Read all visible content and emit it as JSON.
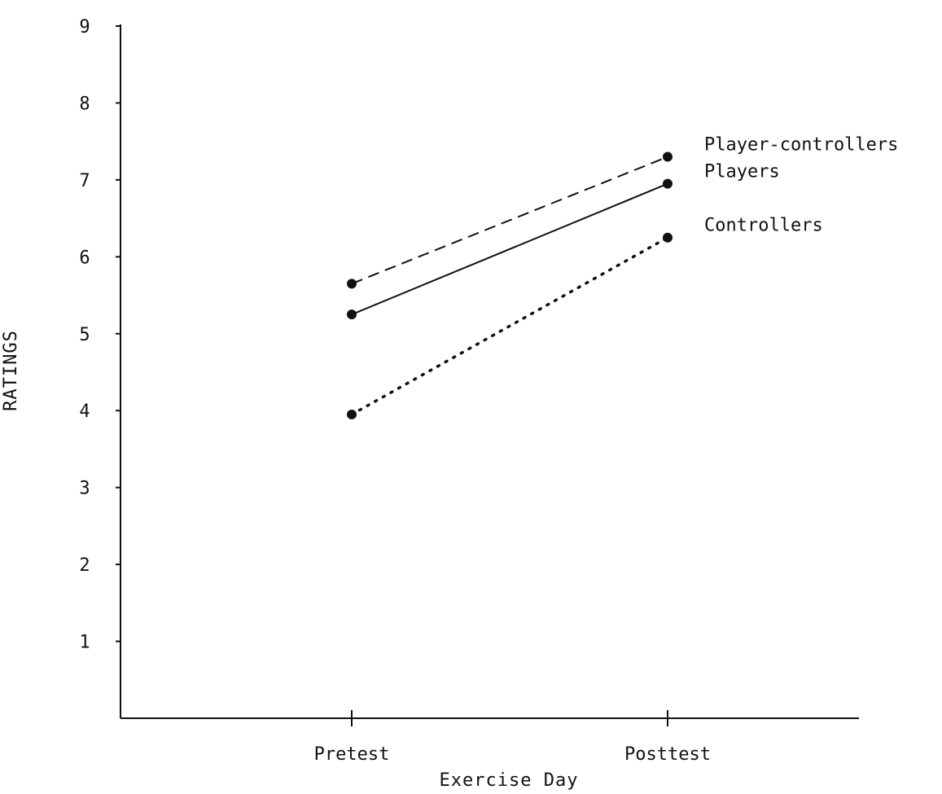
{
  "chart_data": {
    "type": "line",
    "title": "",
    "xlabel": "Exercise Day",
    "ylabel": "RATINGS",
    "categories": [
      "Pretest",
      "Posttest"
    ],
    "ylim": [
      0,
      9
    ],
    "yticks": [
      "1",
      "2",
      "3",
      "4",
      "5",
      "6",
      "7",
      "8",
      "9"
    ],
    "grid": false,
    "legend": "labels at line ends (right)",
    "series": [
      {
        "name": "Player-controllers",
        "values": [
          5.65,
          7.3
        ],
        "line_style": "dashed",
        "color": "#111111"
      },
      {
        "name": "Players",
        "values": [
          5.25,
          6.95
        ],
        "line_style": "solid",
        "color": "#111111"
      },
      {
        "name": "Controllers",
        "values": [
          3.95,
          6.25
        ],
        "line_style": "dotted",
        "color": "#111111"
      }
    ]
  }
}
